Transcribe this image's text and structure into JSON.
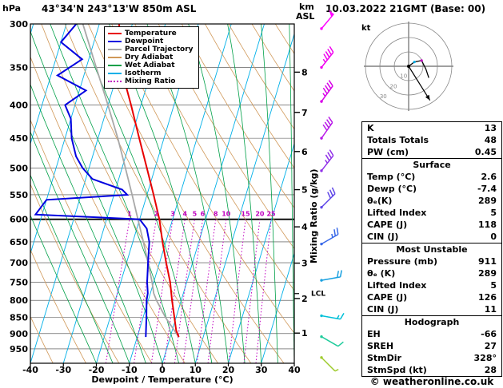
{
  "header": {
    "pressure_unit": "hPa",
    "station": "43°34'N 243°13'W 850m ASL",
    "km_label": "km",
    "asl_label": "ASL",
    "datetime": "10.03.2022 21GMT (Base: 00)"
  },
  "axes": {
    "xlabel": "Dewpoint / Temperature (°C)",
    "x_ticks": [
      -40,
      -30,
      -20,
      -10,
      0,
      10,
      20,
      30,
      40
    ],
    "pressure_ticks": [
      300,
      350,
      400,
      450,
      500,
      550,
      600,
      650,
      700,
      750,
      800,
      850,
      900,
      950
    ],
    "km_ticks": [
      1,
      2,
      3,
      4,
      5,
      6,
      7,
      8
    ],
    "mixing_ratio_axis_label": "Mixing Ratio (g/kg)",
    "lcl_label": "LCL",
    "lcl_pressure": 781
  },
  "legend": {
    "items": [
      {
        "label": "Temperature",
        "color": "#e80000",
        "style": "solid"
      },
      {
        "label": "Dewpoint",
        "color": "#0000e0",
        "style": "solid"
      },
      {
        "label": "Parcel Trajectory",
        "color": "#a8a8a8",
        "style": "solid"
      },
      {
        "label": "Dry Adiabat",
        "color": "#d09858",
        "style": "solid"
      },
      {
        "label": "Wet Adiabat",
        "color": "#00a048",
        "style": "solid"
      },
      {
        "label": "Isotherm",
        "color": "#00b0e8",
        "style": "solid"
      },
      {
        "label": "Mixing Ratio",
        "color": "#c000c0",
        "style": "dotted"
      }
    ]
  },
  "hodograph": {
    "unit_label": "kt",
    "ring_labels": [
      "10",
      "20",
      "30"
    ]
  },
  "indices": {
    "general": [
      {
        "label": "K",
        "value": "13"
      },
      {
        "label": "Totals Totals",
        "value": "48"
      },
      {
        "label": "PW (cm)",
        "value": "0.45"
      }
    ],
    "sections": [
      {
        "header": "Surface",
        "rows": [
          {
            "label": "Temp (°C)",
            "value": "2.6"
          },
          {
            "label": "Dewp (°C)",
            "value": "-7.4"
          },
          {
            "label": "θₑ(K)",
            "value": "289"
          },
          {
            "label": "Lifted Index",
            "value": "5"
          },
          {
            "label": "CAPE (J)",
            "value": "118"
          },
          {
            "label": "CIN (J)",
            "value": "0"
          }
        ]
      },
      {
        "header": "Most Unstable",
        "rows": [
          {
            "label": "Pressure (mb)",
            "value": "911"
          },
          {
            "label": "θₑ (K)",
            "value": "289"
          },
          {
            "label": "Lifted Index",
            "value": "5"
          },
          {
            "label": "CAPE (J)",
            "value": "126"
          },
          {
            "label": "CIN (J)",
            "value": "11"
          }
        ]
      },
      {
        "header": "Hodograph",
        "rows": [
          {
            "label": "EH",
            "value": "-66"
          },
          {
            "label": "SREH",
            "value": "27"
          },
          {
            "label": "StmDir",
            "value": "328°"
          },
          {
            "label": "StmSpd (kt)",
            "value": "28"
          }
        ]
      }
    ]
  },
  "footer": {
    "copyright": "© weatheronline.co.uk"
  },
  "chart_data": {
    "type": "skewt-log-p",
    "pressure_range": [
      300,
      1000
    ],
    "temp_range": [
      -40,
      40
    ],
    "skew": 0.3,
    "isotherms_c": [
      -70,
      -60,
      -50,
      -40,
      -30,
      -20,
      -10,
      0,
      10,
      20,
      30,
      40
    ],
    "dry_adiabats_theta_k": [
      230,
      240,
      250,
      260,
      270,
      280,
      290,
      300,
      310,
      320,
      330,
      340,
      350,
      360,
      370,
      380,
      390,
      400
    ],
    "wet_adiabats_start_c": [
      -20,
      -15,
      -10,
      -5,
      0,
      5,
      10,
      15,
      20,
      25,
      30,
      35,
      40,
      45
    ],
    "mixing_ratio_lines": [
      1,
      2,
      3,
      4,
      5,
      6,
      8,
      10,
      15,
      20,
      25
    ],
    "colors": {
      "temperature": "#e80000",
      "dewpoint": "#0000e0",
      "parcel": "#a8a8a8",
      "dry_adiabat": "#d09858",
      "wet_adiabat": "#00a048",
      "isotherm": "#00b0e8",
      "mixing_ratio": "#c000c0",
      "grid": "#404040"
    },
    "temperature_profile": [
      [
        911,
        2.6
      ],
      [
        890,
        1.2
      ],
      [
        850,
        -0.5
      ],
      [
        800,
        -2.8
      ],
      [
        750,
        -5
      ],
      [
        700,
        -8
      ],
      [
        650,
        -11
      ],
      [
        600,
        -14
      ],
      [
        550,
        -18
      ],
      [
        500,
        -22.5
      ],
      [
        450,
        -27.5
      ],
      [
        400,
        -33
      ],
      [
        350,
        -39.5
      ],
      [
        300,
        -44
      ]
    ],
    "dewpoint_profile": [
      [
        911,
        -7.4
      ],
      [
        850,
        -9
      ],
      [
        800,
        -10.5
      ],
      [
        780,
        -10.8
      ],
      [
        750,
        -12
      ],
      [
        700,
        -13.5
      ],
      [
        650,
        -15
      ],
      [
        620,
        -17
      ],
      [
        600,
        -20
      ],
      [
        590,
        -52
      ],
      [
        560,
        -50
      ],
      [
        550,
        -26
      ],
      [
        540,
        -28
      ],
      [
        520,
        -38
      ],
      [
        500,
        -42
      ],
      [
        480,
        -45
      ],
      [
        450,
        -48
      ],
      [
        420,
        -50
      ],
      [
        400,
        -53
      ],
      [
        380,
        -48
      ],
      [
        360,
        -58
      ],
      [
        340,
        -52
      ],
      [
        320,
        -60
      ],
      [
        300,
        -57
      ]
    ],
    "parcel_profile": [
      [
        911,
        2.6
      ],
      [
        850,
        -3.2
      ],
      [
        800,
        -7.5
      ],
      [
        780,
        -9
      ],
      [
        750,
        -10.5
      ],
      [
        700,
        -13.5
      ],
      [
        650,
        -16.8
      ],
      [
        600,
        -20.5
      ],
      [
        550,
        -24.5
      ],
      [
        500,
        -29
      ],
      [
        450,
        -34
      ],
      [
        400,
        -40
      ],
      [
        350,
        -47
      ],
      [
        300,
        -55
      ]
    ],
    "wind_barbs": [
      {
        "pressure": 305,
        "speed": 50,
        "dir": 40,
        "color": "#ff00ff"
      },
      {
        "pressure": 350,
        "speed": 45,
        "dir": 38,
        "color": "#f000f0"
      },
      {
        "pressure": 395,
        "speed": 45,
        "dir": 36,
        "color": "#d800e8"
      },
      {
        "pressure": 450,
        "speed": 40,
        "dir": 35,
        "color": "#b818e8"
      },
      {
        "pressure": 505,
        "speed": 35,
        "dir": 38,
        "color": "#9030e8"
      },
      {
        "pressure": 575,
        "speed": 30,
        "dir": 45,
        "color": "#6048e8"
      },
      {
        "pressure": 655,
        "speed": 25,
        "dir": 60,
        "color": "#3868e8"
      },
      {
        "pressure": 745,
        "speed": 20,
        "dir": 80,
        "color": "#18a0e0"
      },
      {
        "pressure": 845,
        "speed": 15,
        "dir": 100,
        "color": "#00c0d8"
      },
      {
        "pressure": 910,
        "speed": 10,
        "dir": 120,
        "color": "#20cc9c"
      },
      {
        "pressure": 980,
        "speed": 5,
        "dir": 135,
        "color": "#a0cc30"
      }
    ],
    "hodograph_trace_kt": [
      [
        0,
        0
      ],
      [
        4,
        3
      ],
      [
        9,
        4
      ],
      [
        12,
        -2
      ],
      [
        14,
        -8
      ]
    ],
    "storm_motion_kt": [
      14.8,
      -23.7
    ]
  }
}
